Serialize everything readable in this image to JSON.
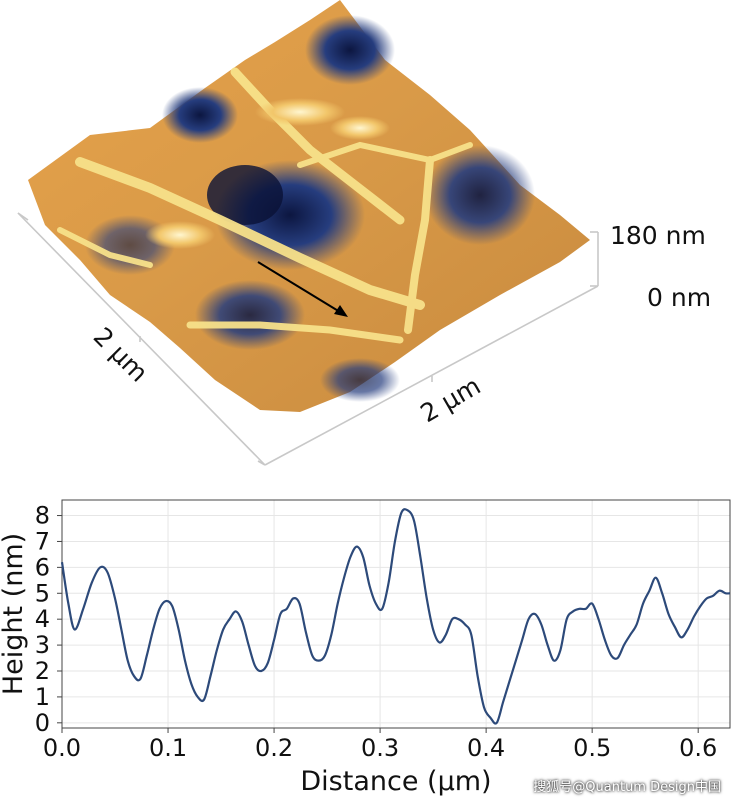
{
  "afm_image": {
    "scale_bar_top": "180 nm",
    "scale_bar_bottom": "0 nm",
    "axis_label_left": "2 µm",
    "axis_label_right": "2 µm",
    "colors": {
      "low": "#1d2f6b",
      "mid": "#e3a24a",
      "high": "#fff7d6"
    }
  },
  "chart_data": {
    "type": "line",
    "xlabel": "Distance (μm)",
    "ylabel": "Height (nm)",
    "xlim": [
      0.0,
      0.63
    ],
    "ylim": [
      -0.2,
      8.6
    ],
    "xticks": [
      "0.0",
      "0.1",
      "0.2",
      "0.3",
      "0.4",
      "0.5",
      "0.6"
    ],
    "xtick_values": [
      0.0,
      0.1,
      0.2,
      0.3,
      0.4,
      0.5,
      0.6
    ],
    "yticks": [
      "0",
      "1",
      "2",
      "3",
      "4",
      "5",
      "6",
      "7",
      "8"
    ],
    "ytick_values": [
      0,
      1,
      2,
      3,
      4,
      5,
      6,
      7,
      8
    ],
    "grid": true,
    "line_color": "#2d4a7a",
    "series": [
      {
        "x": [
          0.0,
          0.006,
          0.012,
          0.02,
          0.028,
          0.036,
          0.043,
          0.05,
          0.056,
          0.062,
          0.068,
          0.074,
          0.08,
          0.086,
          0.092,
          0.098,
          0.104,
          0.11,
          0.116,
          0.122,
          0.128,
          0.134,
          0.14,
          0.146,
          0.152,
          0.158,
          0.164,
          0.17,
          0.176,
          0.182,
          0.188,
          0.194,
          0.2,
          0.206,
          0.212,
          0.218,
          0.224,
          0.23,
          0.236,
          0.242,
          0.248,
          0.254,
          0.26,
          0.266,
          0.272,
          0.278,
          0.284,
          0.29,
          0.296,
          0.302,
          0.308,
          0.314,
          0.32,
          0.326,
          0.332,
          0.338,
          0.344,
          0.35,
          0.356,
          0.362,
          0.368,
          0.374,
          0.38,
          0.386,
          0.392,
          0.398,
          0.404,
          0.41,
          0.416,
          0.422,
          0.428,
          0.434,
          0.44,
          0.446,
          0.452,
          0.458,
          0.464,
          0.47,
          0.476,
          0.482,
          0.488,
          0.494,
          0.5,
          0.506,
          0.512,
          0.518,
          0.524,
          0.53,
          0.536,
          0.542,
          0.548,
          0.554,
          0.56,
          0.566,
          0.572,
          0.578,
          0.584,
          0.59,
          0.596,
          0.602,
          0.608,
          0.614,
          0.62,
          0.626,
          0.63
        ],
        "y": [
          6.2,
          4.6,
          3.6,
          4.4,
          5.4,
          6.0,
          5.8,
          4.8,
          3.6,
          2.4,
          1.8,
          1.7,
          2.6,
          3.6,
          4.4,
          4.7,
          4.5,
          3.6,
          2.4,
          1.5,
          1.0,
          0.9,
          1.8,
          2.8,
          3.6,
          4.0,
          4.3,
          3.9,
          3.0,
          2.2,
          2.0,
          2.3,
          3.2,
          4.2,
          4.4,
          4.8,
          4.6,
          3.5,
          2.6,
          2.4,
          2.6,
          3.4,
          4.6,
          5.6,
          6.4,
          6.8,
          6.4,
          5.3,
          4.6,
          4.4,
          5.4,
          7.0,
          8.1,
          8.2,
          7.8,
          6.4,
          4.8,
          3.6,
          3.1,
          3.4,
          4.0,
          4.0,
          3.8,
          3.4,
          1.8,
          0.6,
          0.2,
          0.0,
          0.8,
          1.6,
          2.4,
          3.2,
          4.0,
          4.2,
          3.8,
          3.0,
          2.4,
          2.8,
          4.0,
          4.3,
          4.4,
          4.4,
          4.6,
          4.0,
          3.2,
          2.6,
          2.5,
          3.0,
          3.4,
          3.8,
          4.6,
          5.1,
          5.6,
          5.0,
          4.2,
          3.7,
          3.3,
          3.6,
          4.1,
          4.5,
          4.8,
          4.9,
          5.1,
          5.0,
          5.0
        ]
      }
    ]
  },
  "watermark": "搜狐号@Quantum Design中国"
}
